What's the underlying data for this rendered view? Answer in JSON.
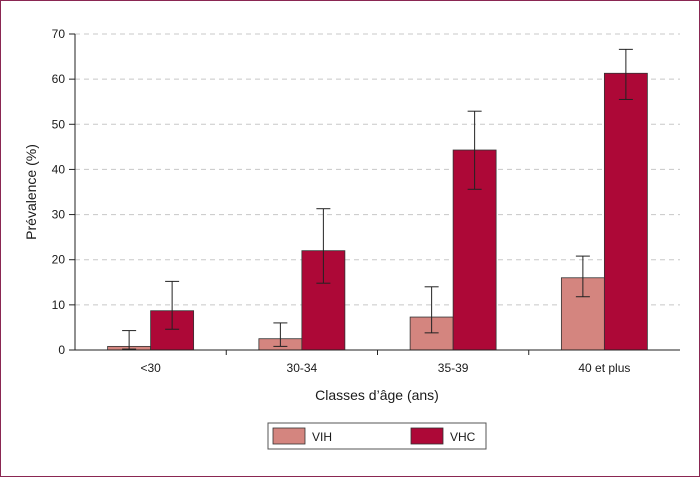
{
  "chart_data": {
    "type": "bar",
    "categories": [
      "<30",
      "30-34",
      "35-39",
      "40 et plus"
    ],
    "series": [
      {
        "name": "VIH",
        "values": [
          0.8,
          2.5,
          7.3,
          16.0
        ],
        "err_low": [
          0.2,
          0.8,
          3.8,
          11.8
        ],
        "err_high": [
          4.3,
          6.0,
          14.0,
          20.8
        ],
        "color": "#d4857f"
      },
      {
        "name": "VHC",
        "values": [
          8.7,
          22.0,
          44.3,
          61.3
        ],
        "err_low": [
          4.6,
          14.8,
          35.6,
          55.5
        ],
        "err_high": [
          15.2,
          31.3,
          52.9,
          66.6
        ],
        "color": "#ad0837"
      }
    ],
    "xlabel": "Classes d’âge (ans)",
    "ylabel": "Prévalence (%)",
    "ylim": [
      0,
      70
    ],
    "yticks": [
      0,
      10,
      20,
      30,
      40,
      50,
      60,
      70
    ],
    "grid": true,
    "legend_position": "bottom-center"
  }
}
